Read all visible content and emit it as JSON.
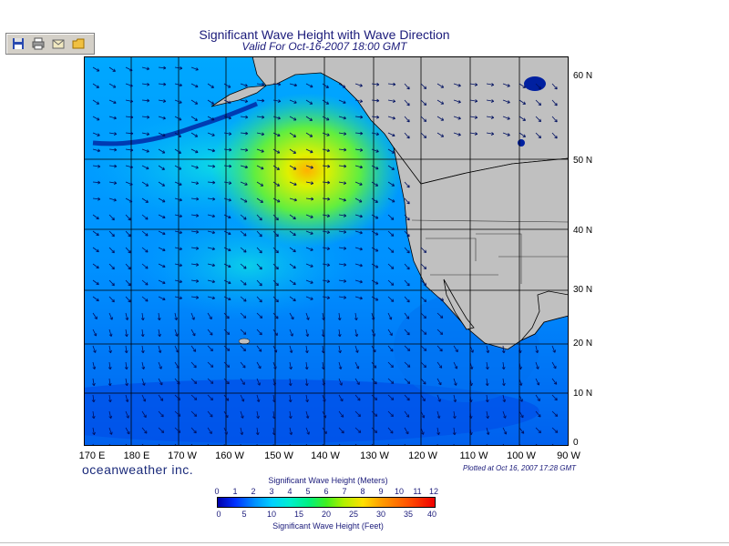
{
  "toolbar": {
    "buttons": [
      {
        "name": "save",
        "icon": "floppy-disk-icon"
      },
      {
        "name": "print",
        "icon": "printer-icon"
      },
      {
        "name": "email",
        "icon": "envelope-icon"
      },
      {
        "name": "export",
        "icon": "folder-icon"
      }
    ]
  },
  "map": {
    "title": "Significant Wave Height with Wave Direction",
    "subtitle": "Valid For Oct-16-2007 18:00 GMT",
    "lon_labels": [
      "170 E",
      "180 E",
      "170 W",
      "160 W",
      "150 W",
      "140 W",
      "130 W",
      "120 W",
      "110 W",
      "100 W",
      "90 W"
    ],
    "lat_labels": [
      "60 N",
      "50 N",
      "40 N",
      "30 N",
      "20 N",
      "10 N",
      "0"
    ],
    "brand": "oceanweather inc.",
    "plotted": "Plotted at Oct 16, 2007 17:28 GMT",
    "colors": {
      "ocean_low": "#0050e0",
      "ocean_mid": "#00b0ff",
      "land": "#c0c0c0",
      "peak": "#ffb000"
    }
  },
  "legend": {
    "meters_title": "Significant Wave Height (Meters)",
    "feet_title": "Significant Wave Height (Feet)",
    "meters": [
      "0",
      "1",
      "2",
      "3",
      "4",
      "5",
      "6",
      "7",
      "8",
      "9",
      "10",
      "11",
      "12"
    ],
    "feet": [
      "0",
      "5",
      "10",
      "15",
      "20",
      "25",
      "30",
      "35",
      "40"
    ]
  }
}
